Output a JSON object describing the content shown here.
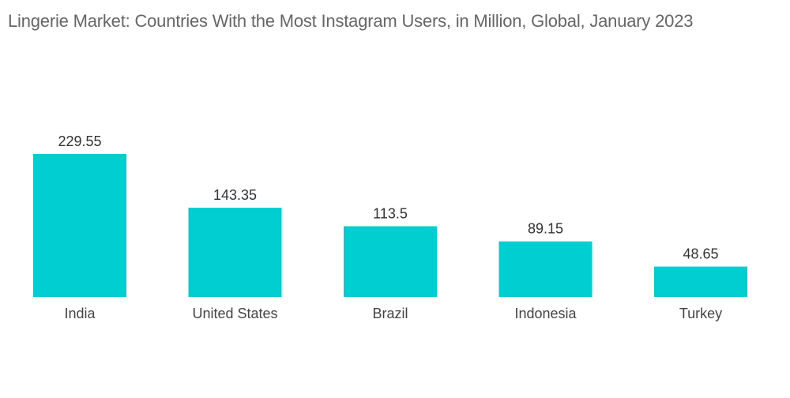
{
  "chart_data": {
    "type": "bar",
    "title": "Lingerie Market: Countries With the Most Instagram Users, in Million, Global, January 2023",
    "categories": [
      "India",
      "United States",
      "Brazil",
      "Indonesia",
      "Turkey"
    ],
    "values": [
      229.55,
      143.35,
      113.5,
      89.15,
      48.65
    ],
    "value_labels": [
      "229.55",
      "143.35",
      "113.5",
      "89.15",
      "48.65"
    ],
    "xlabel": "",
    "ylabel": "",
    "ylim": [
      0,
      229.55
    ],
    "grid": false,
    "legend": "none",
    "bar_color": "#00CED1"
  }
}
